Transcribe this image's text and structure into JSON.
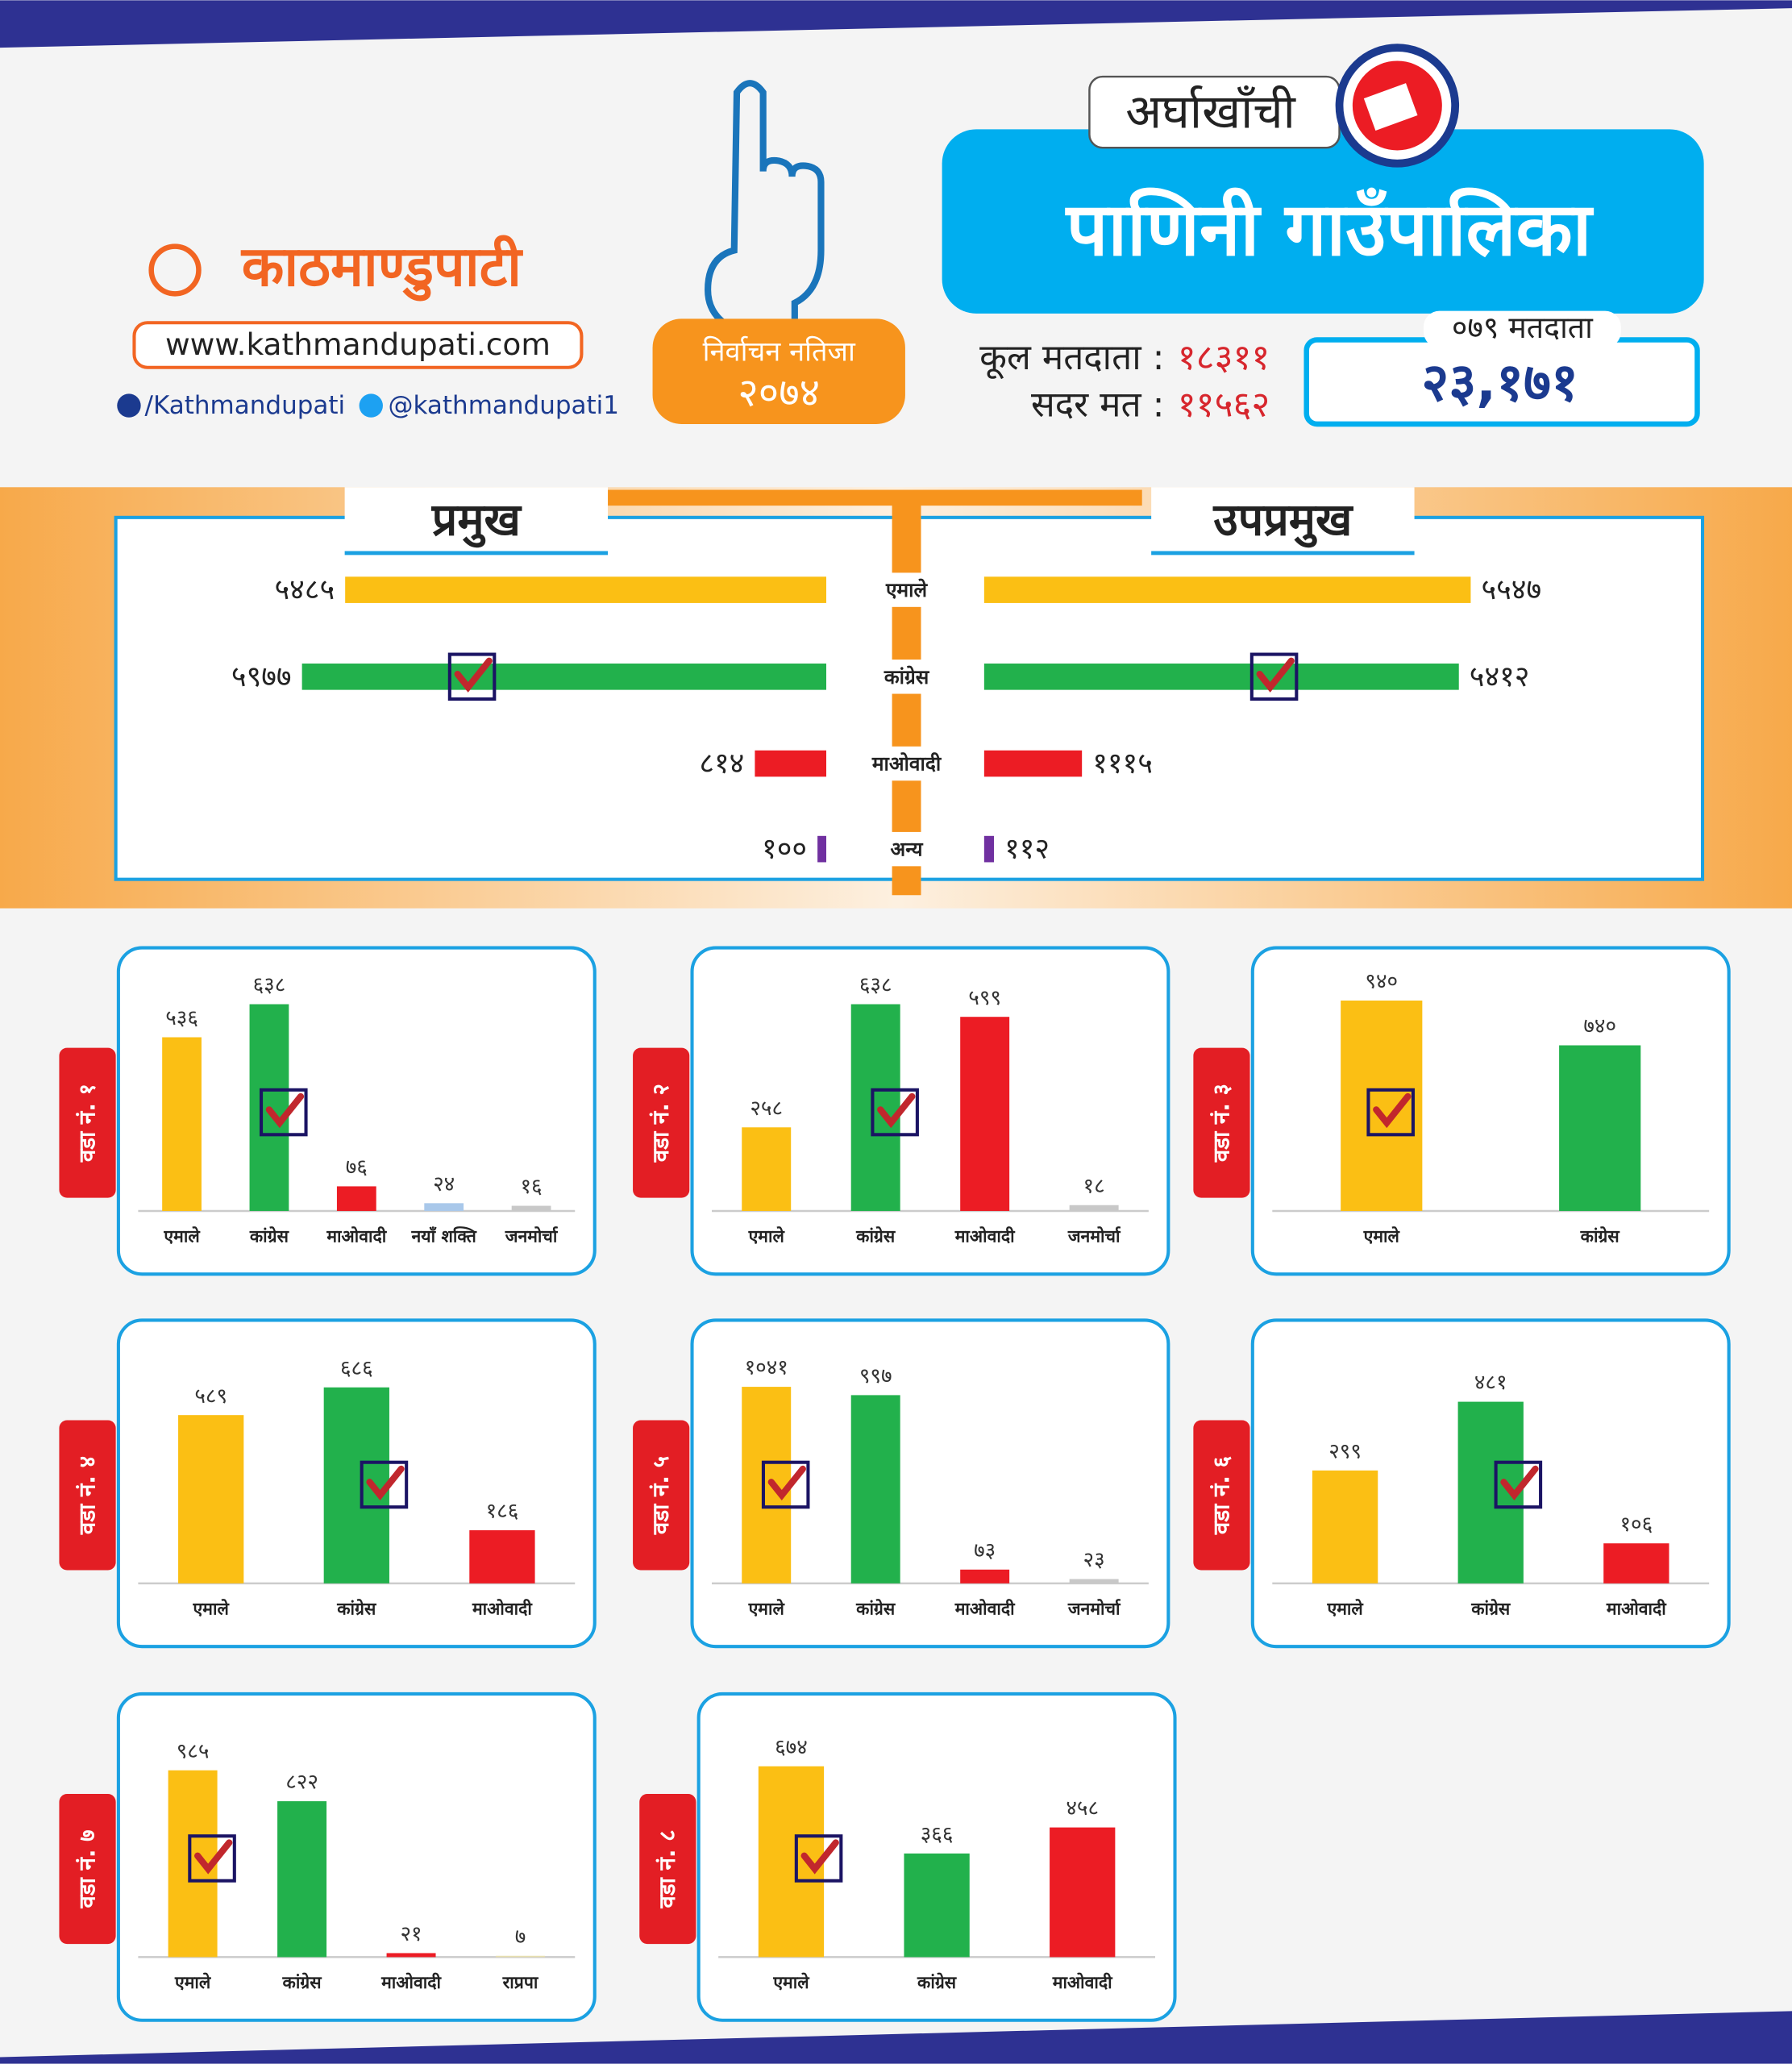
{
  "header": {
    "brand": "काठमाण्डुपाटी",
    "website": "www.kathmandupati.com",
    "facebook": "/Kathmandupati",
    "twitter": "@kathmandupati1",
    "badge_title": "निर्वाचन नतिजा",
    "badge_year": "२०७४",
    "district": "अर्घाखाँची",
    "municipality": "पाणिनी गाउँपालिका",
    "total_voters_label": "कूल मतदाता :",
    "total_voters": "१८३११",
    "valid_votes_label": "सदर मत :",
    "valid_votes": "११५६२",
    "voters_079_label": "०७९ मतदाता",
    "voters_079": "२३,१७१"
  },
  "chart_data": [
    {
      "type": "bar",
      "orientation": "horizontal",
      "categories": [
        "एमाले",
        "कांग्रेस",
        "माओवादी",
        "अन्य"
      ],
      "colors": [
        "#fbbf14",
        "#22b14c",
        "#ec1c24",
        "#7030a0"
      ],
      "xlim": [
        0,
        6000
      ],
      "series": [
        {
          "name": "प्रमुख",
          "values": [
            5485,
            5977,
            814,
            100
          ],
          "value_labels": [
            "५४८५",
            "५९७७",
            "८१४",
            "१००"
          ],
          "checked": 1
        },
        {
          "name": "उपप्रमुख",
          "values": [
            5547,
            5412,
            1115,
            112
          ],
          "value_labels": [
            "५५४७",
            "५४१२",
            "१११५",
            "११२"
          ],
          "checked": 1
        }
      ]
    },
    {
      "type": "bar",
      "title": "वडा नं. १",
      "categories": [
        "एमाले",
        "कांग्रेस",
        "माओवादी",
        "नयाँ शक्ति",
        "जनमोर्चा"
      ],
      "values": [
        536,
        638,
        76,
        24,
        16
      ],
      "value_labels": [
        "५३६",
        "६३८",
        "७६",
        "२४",
        "१६"
      ],
      "colors": [
        "#fbbf14",
        "#22b14c",
        "#ec1c24",
        "#a9c8ea",
        "#c8c8c8"
      ],
      "ylim": [
        0,
        670
      ],
      "checked": 1
    },
    {
      "type": "bar",
      "title": "वडा नं. २",
      "categories": [
        "एमाले",
        "कांग्रेस",
        "माओवादी",
        "जनमोर्चा"
      ],
      "values": [
        258,
        638,
        599,
        18
      ],
      "value_labels": [
        "२५८",
        "६३८",
        "५९९",
        "१८"
      ],
      "colors": [
        "#fbbf14",
        "#22b14c",
        "#ec1c24",
        "#c8c8c8"
      ],
      "ylim": [
        0,
        670
      ],
      "checked": 1
    },
    {
      "type": "bar",
      "title": "वडा नं. ३",
      "categories": [
        "एमाले",
        "कांग्रेस"
      ],
      "values": [
        940,
        740
      ],
      "value_labels": [
        "९४०",
        "७४०"
      ],
      "colors": [
        "#fbbf14",
        "#22b14c"
      ],
      "ylim": [
        0,
        970
      ],
      "checked": 0
    },
    {
      "type": "bar",
      "title": "वडा नं. ४",
      "categories": [
        "एमाले",
        "कांग्रेस",
        "माओवादी"
      ],
      "values": [
        589,
        686,
        186
      ],
      "value_labels": [
        "५८९",
        "६८६",
        "१८६"
      ],
      "colors": [
        "#fbbf14",
        "#22b14c",
        "#ec1c24"
      ],
      "ylim": [
        0,
        760
      ],
      "checked": 1
    },
    {
      "type": "bar",
      "title": "वडा नं. ५",
      "categories": [
        "एमाले",
        "कांग्रेस",
        "माओवादी",
        "जनमोर्चा"
      ],
      "values": [
        1041,
        997,
        73,
        23
      ],
      "value_labels": [
        "१०४१",
        "९९७",
        "७३",
        "२३"
      ],
      "colors": [
        "#fbbf14",
        "#22b14c",
        "#ec1c24",
        "#c8c8c8"
      ],
      "ylim": [
        0,
        1150
      ],
      "checked": 0
    },
    {
      "type": "bar",
      "title": "वडा नं. ६",
      "categories": [
        "एमाले",
        "कांग्रेस",
        "माओवादी"
      ],
      "values": [
        299,
        481,
        106
      ],
      "value_labels": [
        "२९९",
        "४८१",
        "१०६"
      ],
      "colors": [
        "#fbbf14",
        "#22b14c",
        "#ec1c24"
      ],
      "ylim": [
        0,
        575
      ],
      "checked": 1
    },
    {
      "type": "bar",
      "title": "वडा नं. ७",
      "categories": [
        "एमाले",
        "कांग्रेस",
        "माओवादी",
        "राप्रपा"
      ],
      "values": [
        985,
        822,
        21,
        7
      ],
      "value_labels": [
        "९८५",
        "८२२",
        "२१",
        "७"
      ],
      "colors": [
        "#fbbf14",
        "#22b14c",
        "#ec1c24",
        "#e8e0b0"
      ],
      "ylim": [
        0,
        1145
      ],
      "checked": 0
    },
    {
      "type": "bar",
      "title": "वडा नं. ८",
      "categories": [
        "एमाले",
        "कांग्रेस",
        "माओवादी"
      ],
      "values": [
        674,
        366,
        458
      ],
      "value_labels": [
        "६७४",
        "३६६",
        "४५८"
      ],
      "colors": [
        "#fbbf14",
        "#22b14c",
        "#ec1c24"
      ],
      "ylim": [
        0,
        767
      ],
      "checked": 0
    }
  ]
}
